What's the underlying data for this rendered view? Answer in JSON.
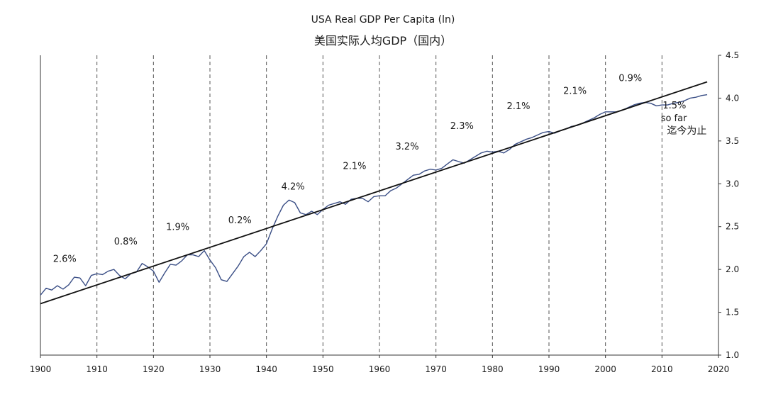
{
  "chart_data": {
    "type": "line",
    "title": "USA Real GDP Per Capita (ln)",
    "subtitle": "美国实际人均GDP（国内）",
    "xlabel": "",
    "ylabel": "",
    "xlim": [
      1900,
      2020
    ],
    "ylim": [
      1.0,
      4.5
    ],
    "x_ticks": [
      1900,
      1910,
      1920,
      1930,
      1940,
      1950,
      1960,
      1970,
      1980,
      1990,
      2000,
      2010,
      2020
    ],
    "y_ticks": [
      "1.0",
      "1.5",
      "2.0",
      "2.5",
      "3.0",
      "3.5",
      "4.0",
      "4.5"
    ],
    "y_axis_side": "right",
    "vertical_gridlines": "dashed, every decade",
    "series": [
      {
        "color": "#3b4f86",
        "points": [
          [
            1900,
            1.7
          ],
          [
            1901,
            1.78
          ],
          [
            1902,
            1.76
          ],
          [
            1903,
            1.81
          ],
          [
            1904,
            1.77
          ],
          [
            1905,
            1.82
          ],
          [
            1906,
            1.91
          ],
          [
            1907,
            1.9
          ],
          [
            1908,
            1.81
          ],
          [
            1909,
            1.93
          ],
          [
            1910,
            1.95
          ],
          [
            1911,
            1.94
          ],
          [
            1912,
            1.98
          ],
          [
            1913,
            2.0
          ],
          [
            1914,
            1.93
          ],
          [
            1915,
            1.89
          ],
          [
            1916,
            1.95
          ],
          [
            1917,
            1.97
          ],
          [
            1918,
            2.07
          ],
          [
            1919,
            2.03
          ],
          [
            1920,
            1.98
          ],
          [
            1921,
            1.85
          ],
          [
            1922,
            1.96
          ],
          [
            1923,
            2.06
          ],
          [
            1924,
            2.05
          ],
          [
            1925,
            2.1
          ],
          [
            1926,
            2.17
          ],
          [
            1927,
            2.17
          ],
          [
            1928,
            2.15
          ],
          [
            1929,
            2.22
          ],
          [
            1930,
            2.11
          ],
          [
            1931,
            2.02
          ],
          [
            1932,
            1.88
          ],
          [
            1933,
            1.86
          ],
          [
            1934,
            1.95
          ],
          [
            1935,
            2.04
          ],
          [
            1936,
            2.15
          ],
          [
            1937,
            2.2
          ],
          [
            1938,
            2.15
          ],
          [
            1939,
            2.22
          ],
          [
            1940,
            2.3
          ],
          [
            1941,
            2.47
          ],
          [
            1942,
            2.62
          ],
          [
            1943,
            2.75
          ],
          [
            1944,
            2.81
          ],
          [
            1945,
            2.78
          ],
          [
            1946,
            2.66
          ],
          [
            1947,
            2.64
          ],
          [
            1948,
            2.68
          ],
          [
            1949,
            2.64
          ],
          [
            1950,
            2.7
          ],
          [
            1951,
            2.75
          ],
          [
            1952,
            2.77
          ],
          [
            1953,
            2.79
          ],
          [
            1954,
            2.76
          ],
          [
            1955,
            2.82
          ],
          [
            1956,
            2.83
          ],
          [
            1957,
            2.83
          ],
          [
            1958,
            2.79
          ],
          [
            1959,
            2.85
          ],
          [
            1960,
            2.86
          ],
          [
            1961,
            2.86
          ],
          [
            1962,
            2.92
          ],
          [
            1963,
            2.95
          ],
          [
            1964,
            3.0
          ],
          [
            1965,
            3.05
          ],
          [
            1966,
            3.1
          ],
          [
            1967,
            3.11
          ],
          [
            1968,
            3.15
          ],
          [
            1969,
            3.17
          ],
          [
            1970,
            3.16
          ],
          [
            1971,
            3.18
          ],
          [
            1972,
            3.23
          ],
          [
            1973,
            3.28
          ],
          [
            1974,
            3.26
          ],
          [
            1975,
            3.24
          ],
          [
            1976,
            3.28
          ],
          [
            1977,
            3.32
          ],
          [
            1978,
            3.36
          ],
          [
            1979,
            3.38
          ],
          [
            1980,
            3.37
          ],
          [
            1981,
            3.38
          ],
          [
            1982,
            3.36
          ],
          [
            1983,
            3.4
          ],
          [
            1984,
            3.46
          ],
          [
            1985,
            3.49
          ],
          [
            1986,
            3.52
          ],
          [
            1987,
            3.54
          ],
          [
            1988,
            3.57
          ],
          [
            1989,
            3.6
          ],
          [
            1990,
            3.61
          ],
          [
            1991,
            3.59
          ],
          [
            1992,
            3.62
          ],
          [
            1993,
            3.64
          ],
          [
            1994,
            3.67
          ],
          [
            1995,
            3.68
          ],
          [
            1996,
            3.71
          ],
          [
            1997,
            3.74
          ],
          [
            1998,
            3.77
          ],
          [
            1999,
            3.81
          ],
          [
            2000,
            3.84
          ],
          [
            2001,
            3.84
          ],
          [
            2002,
            3.84
          ],
          [
            2003,
            3.86
          ],
          [
            2004,
            3.89
          ],
          [
            2005,
            3.92
          ],
          [
            2006,
            3.94
          ],
          [
            2007,
            3.95
          ],
          [
            2008,
            3.94
          ],
          [
            2009,
            3.91
          ],
          [
            2010,
            3.92
          ],
          [
            2011,
            3.92
          ],
          [
            2012,
            3.94
          ],
          [
            2013,
            3.95
          ],
          [
            2014,
            3.97
          ],
          [
            2015,
            4.0
          ],
          [
            2016,
            4.01
          ],
          [
            2017,
            4.03
          ],
          [
            2018,
            4.04
          ]
        ]
      },
      {
        "color": "#111111",
        "points": [
          [
            1900,
            1.6
          ],
          [
            2018,
            4.19
          ]
        ]
      }
    ],
    "annotations": [
      {
        "text": "2.6%",
        "x": 1904.3,
        "y": 2.09
      },
      {
        "text": "0.8%",
        "x": 1915.1,
        "y": 2.29
      },
      {
        "text": "1.9%",
        "x": 1924.3,
        "y": 2.46
      },
      {
        "text": "0.2%",
        "x": 1935.3,
        "y": 2.54
      },
      {
        "text": "4.2%",
        "x": 1944.7,
        "y": 2.93
      },
      {
        "text": "2.1%",
        "x": 1955.6,
        "y": 3.17
      },
      {
        "text": "3.2%",
        "x": 1964.9,
        "y": 3.4
      },
      {
        "text": "2.3%",
        "x": 1974.6,
        "y": 3.64
      },
      {
        "text": "2.1%",
        "x": 1984.6,
        "y": 3.87
      },
      {
        "text": "2.1%",
        "x": 1994.6,
        "y": 4.05
      },
      {
        "text": "0.9%",
        "x": 2004.4,
        "y": 4.2
      },
      {
        "text": "1.5%",
        "x": 2012.2,
        "y": 3.88
      },
      {
        "text": "so far",
        "x": 2012.1,
        "y": 3.73
      },
      {
        "text": "迄今为止",
        "x": 2014.4,
        "y": 3.58
      }
    ]
  }
}
